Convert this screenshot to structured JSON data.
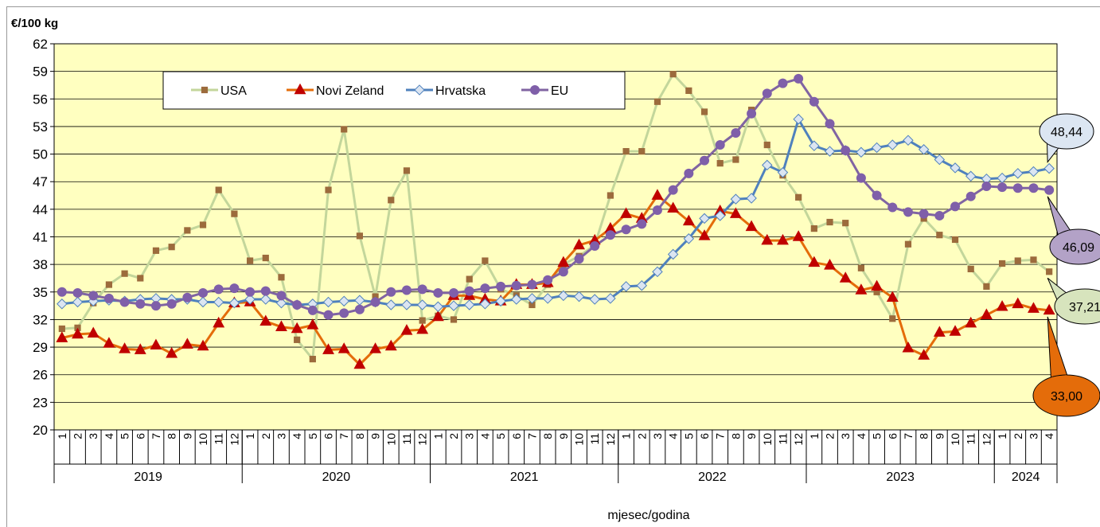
{
  "chart_data": {
    "type": "line",
    "y_axis_label": "€/100 kg",
    "x_axis_label": "mjesec/godina",
    "categories": [
      "1",
      "2",
      "3",
      "4",
      "5",
      "6",
      "7",
      "8",
      "9",
      "10",
      "11",
      "12",
      "1",
      "2",
      "3",
      "4",
      "5",
      "6",
      "7",
      "8",
      "9",
      "10",
      "11",
      "12",
      "1",
      "2",
      "3",
      "4",
      "5",
      "6",
      "7",
      "8",
      "9",
      "10",
      "11",
      "12",
      "1",
      "2",
      "3",
      "4",
      "5",
      "6",
      "7",
      "8",
      "9",
      "10",
      "11",
      "12",
      "1",
      "2",
      "3",
      "4",
      "5",
      "6",
      "7",
      "8",
      "9",
      "10",
      "11",
      "12",
      "1",
      "2",
      "3",
      "4"
    ],
    "years": [
      "2019",
      "2020",
      "2021",
      "2022",
      "2023",
      "2024"
    ],
    "ylim": [
      20,
      62
    ],
    "yticks": [
      20,
      23,
      26,
      29,
      32,
      35,
      38,
      41,
      44,
      47,
      50,
      53,
      56,
      59,
      62
    ],
    "grid": true,
    "series": [
      {
        "name": "USA",
        "color": "#c3d69b",
        "marker": "square",
        "marker_color": "#9c6b3c",
        "values": [
          31.0,
          31.1,
          33.8,
          35.8,
          37.0,
          36.5,
          39.5,
          39.9,
          41.7,
          42.3,
          46.1,
          43.5,
          38.4,
          38.7,
          36.6,
          29.8,
          27.7,
          46.1,
          52.7,
          41.1,
          34.5,
          45.0,
          48.2,
          31.9,
          32.4,
          32.0,
          36.4,
          38.4,
          35.3,
          34.6,
          33.6,
          35.8,
          38.0,
          38.9,
          40.1,
          45.5,
          50.3,
          50.3,
          55.7,
          58.7,
          56.9,
          54.6,
          49.0,
          49.4,
          54.8,
          51.0,
          47.7,
          45.3,
          41.9,
          42.6,
          42.5,
          37.6,
          35.0,
          32.1,
          40.2,
          43.0,
          41.2,
          40.7,
          37.5,
          35.6,
          38.1,
          38.4,
          38.5,
          37.21
        ],
        "value_labels": [
          null,
          null,
          null,
          null,
          null,
          null,
          null,
          null,
          null,
          null,
          null,
          null,
          null,
          null,
          null,
          null,
          null,
          null,
          null,
          null,
          null,
          null,
          null,
          null,
          null,
          null,
          null,
          null,
          null,
          null,
          null,
          null,
          null,
          null,
          null,
          null,
          null,
          null,
          null,
          null,
          null,
          null,
          null,
          null,
          null,
          null,
          null,
          null,
          null,
          null,
          null,
          null,
          null,
          null,
          null,
          null,
          null,
          null,
          null,
          null,
          null,
          null,
          null,
          "37,21"
        ]
      },
      {
        "name": "Novi Zeland",
        "color": "#e46c0a",
        "marker": "triangle",
        "marker_color": "#c00000",
        "values": [
          30.0,
          30.4,
          30.5,
          29.4,
          28.8,
          28.7,
          29.2,
          28.3,
          29.3,
          29.1,
          31.6,
          33.8,
          33.9,
          31.8,
          31.2,
          31.0,
          31.4,
          28.7,
          28.8,
          27.1,
          28.8,
          29.1,
          30.8,
          30.9,
          32.3,
          34.6,
          34.6,
          34.2,
          34.0,
          35.8,
          35.8,
          36.0,
          38.2,
          40.1,
          40.6,
          41.9,
          43.5,
          43.0,
          45.5,
          44.1,
          42.7,
          41.1,
          43.8,
          43.5,
          42.1,
          40.6,
          40.6,
          41.0,
          38.2,
          37.9,
          36.5,
          35.2,
          35.6,
          34.4,
          28.9,
          28.1,
          30.6,
          30.7,
          31.6,
          32.5,
          33.4,
          33.7,
          33.2,
          33.0
        ],
        "value_labels": [
          null,
          null,
          null,
          null,
          null,
          null,
          null,
          null,
          null,
          null,
          null,
          null,
          null,
          null,
          null,
          null,
          null,
          null,
          null,
          null,
          null,
          null,
          null,
          null,
          null,
          null,
          null,
          null,
          null,
          null,
          null,
          null,
          null,
          null,
          null,
          null,
          null,
          null,
          null,
          null,
          null,
          null,
          null,
          null,
          null,
          null,
          null,
          null,
          null,
          null,
          null,
          null,
          null,
          null,
          null,
          null,
          null,
          null,
          null,
          null,
          null,
          null,
          null,
          "33,00"
        ]
      },
      {
        "name": "Hrvatska",
        "color": "#4f81bd",
        "marker": "diamond",
        "marker_color": "#dbe5f1",
        "values": [
          33.7,
          33.9,
          34.0,
          34.1,
          34.0,
          34.2,
          34.3,
          34.2,
          34.2,
          33.9,
          33.9,
          33.8,
          34.2,
          34.2,
          33.8,
          33.6,
          33.7,
          33.9,
          34.0,
          34.1,
          33.9,
          33.6,
          33.6,
          33.6,
          33.4,
          33.5,
          33.6,
          33.7,
          34.0,
          34.2,
          34.3,
          34.3,
          34.6,
          34.5,
          34.2,
          34.3,
          35.6,
          35.7,
          37.2,
          39.1,
          40.8,
          43.0,
          43.3,
          45.1,
          45.2,
          48.8,
          48.0,
          53.8,
          50.9,
          50.3,
          50.4,
          50.2,
          50.7,
          51.0,
          51.5,
          50.5,
          49.4,
          48.5,
          47.6,
          47.3,
          47.4,
          47.9,
          48.1,
          48.44
        ],
        "value_labels": [
          null,
          null,
          null,
          null,
          null,
          null,
          null,
          null,
          null,
          null,
          null,
          null,
          null,
          null,
          null,
          null,
          null,
          null,
          null,
          null,
          null,
          null,
          null,
          null,
          null,
          null,
          null,
          null,
          null,
          null,
          null,
          null,
          null,
          null,
          null,
          null,
          null,
          null,
          null,
          null,
          null,
          null,
          null,
          null,
          null,
          null,
          null,
          null,
          null,
          null,
          null,
          null,
          null,
          null,
          null,
          null,
          null,
          null,
          null,
          null,
          null,
          null,
          null,
          "48,44"
        ]
      },
      {
        "name": "EU",
        "color": "#8064a2",
        "marker": "circle",
        "marker_color": "#7f5fa9",
        "values": [
          35.0,
          34.9,
          34.6,
          34.3,
          33.9,
          33.7,
          33.5,
          33.7,
          34.4,
          34.9,
          35.3,
          35.4,
          35.0,
          35.1,
          34.6,
          33.6,
          33.0,
          32.5,
          32.7,
          33.1,
          33.9,
          35.0,
          35.2,
          35.3,
          34.9,
          34.9,
          35.1,
          35.4,
          35.6,
          35.7,
          35.8,
          36.3,
          37.2,
          38.6,
          40.0,
          41.2,
          41.8,
          42.4,
          43.9,
          46.1,
          47.9,
          49.3,
          51.0,
          52.3,
          54.4,
          56.6,
          57.7,
          58.2,
          55.7,
          53.3,
          50.4,
          47.4,
          45.5,
          44.2,
          43.7,
          43.5,
          43.3,
          44.3,
          45.4,
          46.5,
          46.4,
          46.3,
          46.3,
          46.09
        ],
        "value_labels": [
          null,
          null,
          null,
          null,
          null,
          null,
          null,
          null,
          null,
          null,
          null,
          null,
          null,
          null,
          null,
          null,
          null,
          null,
          null,
          null,
          null,
          null,
          null,
          null,
          null,
          null,
          null,
          null,
          null,
          null,
          null,
          null,
          null,
          null,
          null,
          null,
          null,
          null,
          null,
          null,
          null,
          null,
          null,
          null,
          null,
          null,
          null,
          null,
          null,
          null,
          null,
          null,
          null,
          null,
          null,
          null,
          null,
          null,
          null,
          null,
          null,
          null,
          null,
          "46,09"
        ]
      }
    ]
  }
}
